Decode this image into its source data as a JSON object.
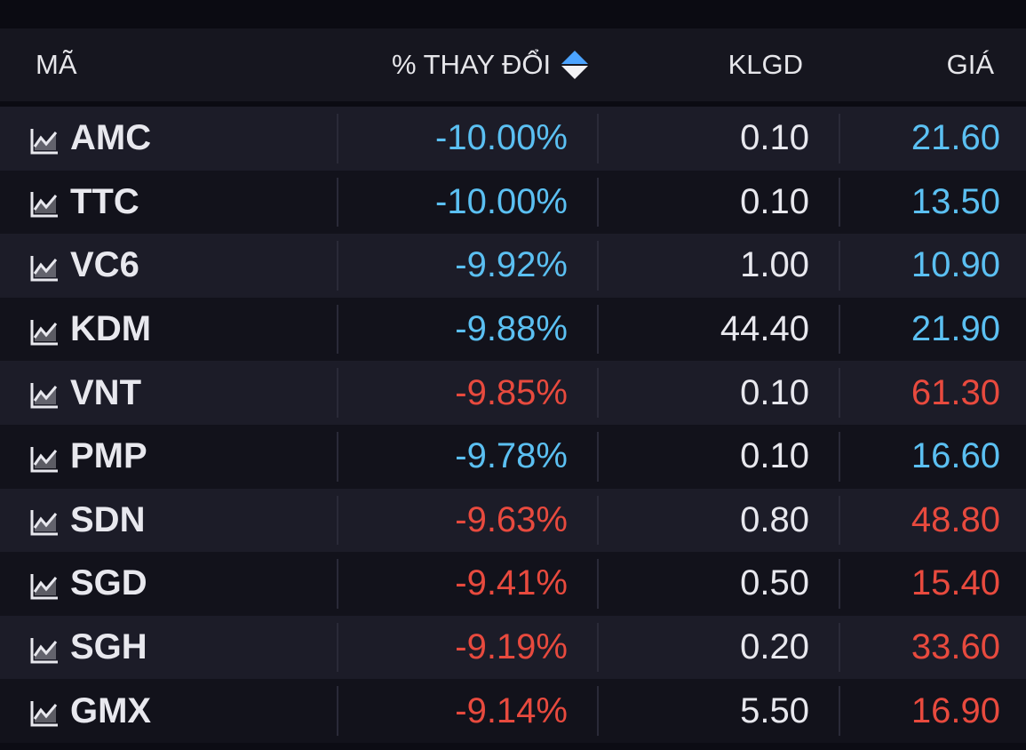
{
  "header": {
    "code": "MÃ",
    "change": "% THAY ĐỔI",
    "volume": "KLGD",
    "price": "GIÁ"
  },
  "colors": {
    "background": "#0c0c14",
    "row_odd": "#1c1c28",
    "row_even": "#12121b",
    "floor": "#5bc0f2",
    "down": "#e84a3e",
    "sort_active": "#4ba3ff"
  },
  "icons": {
    "row_icon": "line-chart-icon",
    "sort": "sort-toggle-icon"
  },
  "rows": [
    {
      "code": "AMC",
      "change": "-10.00%",
      "volume": "0.10",
      "price": "21.60",
      "status": "floor"
    },
    {
      "code": "TTC",
      "change": "-10.00%",
      "volume": "0.10",
      "price": "13.50",
      "status": "floor"
    },
    {
      "code": "VC6",
      "change": "-9.92%",
      "volume": "1.00",
      "price": "10.90",
      "status": "floor"
    },
    {
      "code": "KDM",
      "change": "-9.88%",
      "volume": "44.40",
      "price": "21.90",
      "status": "floor"
    },
    {
      "code": "VNT",
      "change": "-9.85%",
      "volume": "0.10",
      "price": "61.30",
      "status": "down"
    },
    {
      "code": "PMP",
      "change": "-9.78%",
      "volume": "0.10",
      "price": "16.60",
      "status": "floor"
    },
    {
      "code": "SDN",
      "change": "-9.63%",
      "volume": "0.80",
      "price": "48.80",
      "status": "down"
    },
    {
      "code": "SGD",
      "change": "-9.41%",
      "volume": "0.50",
      "price": "15.40",
      "status": "down"
    },
    {
      "code": "SGH",
      "change": "-9.19%",
      "volume": "0.20",
      "price": "33.60",
      "status": "down"
    },
    {
      "code": "GMX",
      "change": "-9.14%",
      "volume": "5.50",
      "price": "16.90",
      "status": "down"
    }
  ]
}
